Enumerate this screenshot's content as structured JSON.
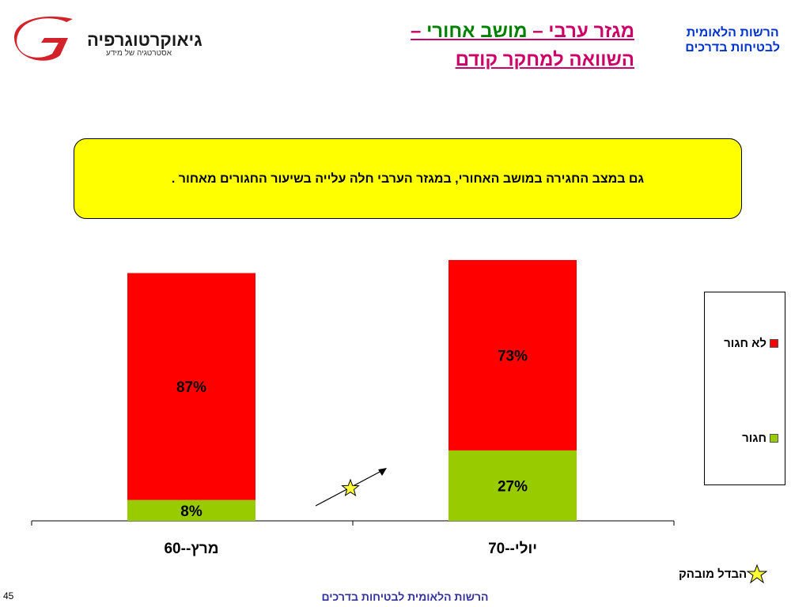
{
  "logo": {
    "brand": "גיאוקרטוגרפיה",
    "tagline": "אסטרטגיה של מידע"
  },
  "title": {
    "line1_part1": "מגזר ערבי – ",
    "line1_part2": "מושב אחורי",
    "line1_part3": " –",
    "line2": "השוואה למחקר קודם"
  },
  "org": {
    "line1": "הרשות הלאומית",
    "line2": "לבטיחות בדרכים"
  },
  "callout": {
    "text": "גם במצב החגירה במושב האחורי, במגזר הערבי חלה עלייה בשיעור החגורים מאחור ."
  },
  "colors": {
    "not_belted": "#ff0000",
    "belted": "#99cc00",
    "callout_bg": "#ffff00",
    "title": "#cc0066",
    "title_accent": "#008000",
    "org": "#0033cc",
    "footer": "#333399"
  },
  "chart_data": {
    "type": "bar",
    "stacked": true,
    "categories": [
      "מרץ--60",
      "יולי--70"
    ],
    "series": [
      {
        "name": "חגור",
        "values": [
          8,
          27
        ],
        "labels": [
          "8%",
          "27%"
        ],
        "color": "#99cc00"
      },
      {
        "name": "לא חגור",
        "values": [
          87,
          73
        ],
        "labels": [
          "87%",
          "73%"
        ],
        "color": "#ff0000"
      }
    ],
    "legend_position": "right",
    "grid": false,
    "significant_increase_marker_between": [
      0,
      1
    ]
  },
  "legend": {
    "items": [
      {
        "label": "לא חגור",
        "color": "#ff0000"
      },
      {
        "label": "חגור",
        "color": "#99cc00"
      }
    ]
  },
  "significant_difference": {
    "label": "הבדל מובהק",
    "icon": "star-icon"
  },
  "footer": {
    "text": "הרשות הלאומית לבטיחות בדרכים"
  },
  "page_number": "45"
}
